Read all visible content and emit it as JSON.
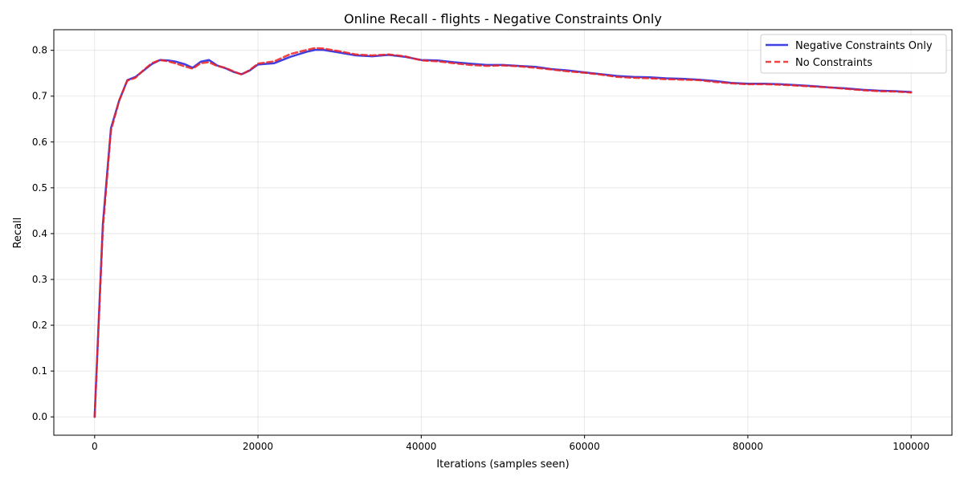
{
  "chart_data": {
    "type": "line",
    "title": "Online Recall - flights - Negative Constraints Only",
    "xlabel": "Iterations (samples seen)",
    "ylabel": "Recall",
    "xlim": [
      -5000,
      105000
    ],
    "ylim": [
      -0.04,
      0.845
    ],
    "xticks": [
      0,
      20000,
      40000,
      60000,
      80000,
      100000
    ],
    "xtick_labels": [
      "0",
      "20000",
      "40000",
      "60000",
      "80000",
      "100000"
    ],
    "yticks": [
      0.0,
      0.1,
      0.2,
      0.3,
      0.4,
      0.5,
      0.6,
      0.7,
      0.8
    ],
    "ytick_labels": [
      "0.0",
      "0.1",
      "0.2",
      "0.3",
      "0.4",
      "0.5",
      "0.6",
      "0.7",
      "0.8"
    ],
    "grid": true,
    "legend_position": "top-right",
    "x": [
      0,
      1000,
      2000,
      3000,
      4000,
      5000,
      6000,
      7000,
      8000,
      9000,
      10000,
      11000,
      12000,
      13000,
      14000,
      15000,
      16000,
      17000,
      18000,
      19000,
      20000,
      22000,
      24000,
      26000,
      27000,
      28000,
      30000,
      32000,
      34000,
      36000,
      38000,
      40000,
      42000,
      44000,
      46000,
      48000,
      50000,
      52000,
      54000,
      56000,
      58000,
      60000,
      62000,
      64000,
      66000,
      68000,
      70000,
      72000,
      74000,
      76000,
      78000,
      80000,
      82000,
      84000,
      86000,
      88000,
      90000,
      92000,
      94000,
      96000,
      98000,
      100000
    ],
    "series": [
      {
        "name": "Negative Constraints Only",
        "color": "#1f1fdd",
        "style": "solid",
        "values": [
          0.0,
          0.42,
          0.63,
          0.69,
          0.735,
          0.742,
          0.756,
          0.77,
          0.779,
          0.778,
          0.775,
          0.77,
          0.762,
          0.775,
          0.779,
          0.767,
          0.761,
          0.753,
          0.748,
          0.756,
          0.769,
          0.772,
          0.786,
          0.797,
          0.801,
          0.801,
          0.795,
          0.789,
          0.787,
          0.79,
          0.786,
          0.779,
          0.778,
          0.774,
          0.771,
          0.768,
          0.768,
          0.766,
          0.764,
          0.759,
          0.756,
          0.752,
          0.748,
          0.744,
          0.742,
          0.741,
          0.739,
          0.738,
          0.736,
          0.733,
          0.729,
          0.727,
          0.727,
          0.726,
          0.724,
          0.722,
          0.719,
          0.717,
          0.714,
          0.712,
          0.711,
          0.709
        ]
      },
      {
        "name": "No Constraints",
        "color": "#ee2222",
        "style": "dashed",
        "values": [
          0.0,
          0.41,
          0.625,
          0.69,
          0.734,
          0.74,
          0.757,
          0.772,
          0.779,
          0.776,
          0.771,
          0.765,
          0.76,
          0.772,
          0.774,
          0.766,
          0.762,
          0.754,
          0.747,
          0.757,
          0.771,
          0.776,
          0.792,
          0.801,
          0.805,
          0.804,
          0.798,
          0.791,
          0.789,
          0.791,
          0.787,
          0.778,
          0.776,
          0.772,
          0.768,
          0.766,
          0.767,
          0.765,
          0.762,
          0.758,
          0.754,
          0.751,
          0.747,
          0.742,
          0.74,
          0.739,
          0.737,
          0.736,
          0.735,
          0.731,
          0.728,
          0.726,
          0.726,
          0.725,
          0.723,
          0.721,
          0.719,
          0.716,
          0.713,
          0.711,
          0.71,
          0.708
        ]
      }
    ]
  }
}
